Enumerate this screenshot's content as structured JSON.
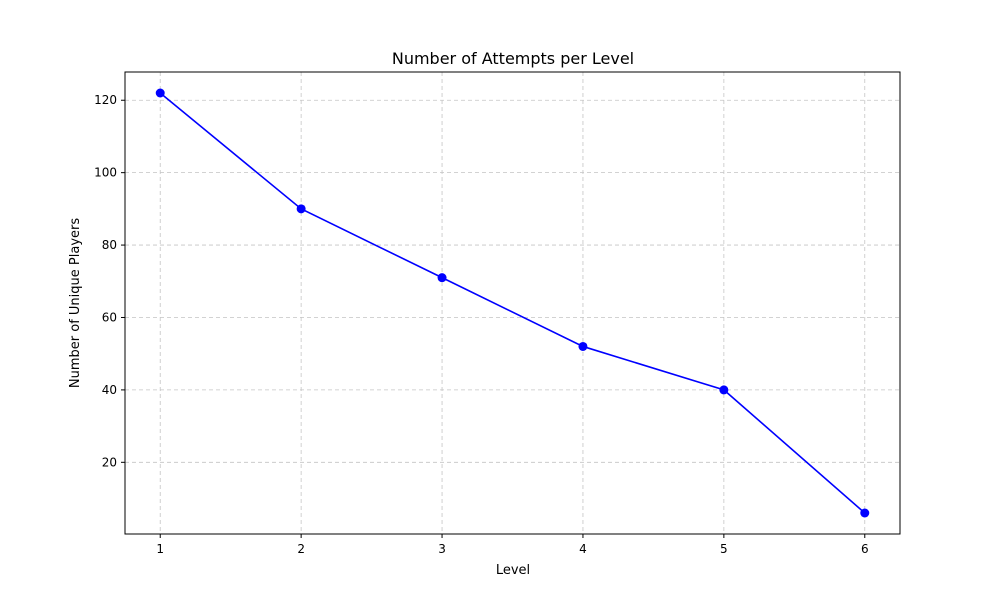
{
  "chart_data": {
    "type": "line",
    "title": "Number of Attempts per Level",
    "xlabel": "Level",
    "ylabel": "Number of Unique Players",
    "x": [
      1,
      2,
      3,
      4,
      5,
      6
    ],
    "series": [
      {
        "values": [
          122,
          90,
          71,
          52,
          40,
          6
        ],
        "color": "#0000ff"
      }
    ],
    "xlim": [
      0.75,
      6.25
    ],
    "ylim": [
      0.2,
      127.8
    ],
    "xticks": [
      1,
      2,
      3,
      4,
      5,
      6
    ],
    "yticks": [
      20,
      40,
      60,
      80,
      100,
      120
    ],
    "grid": true,
    "grid_style": "dashed"
  }
}
